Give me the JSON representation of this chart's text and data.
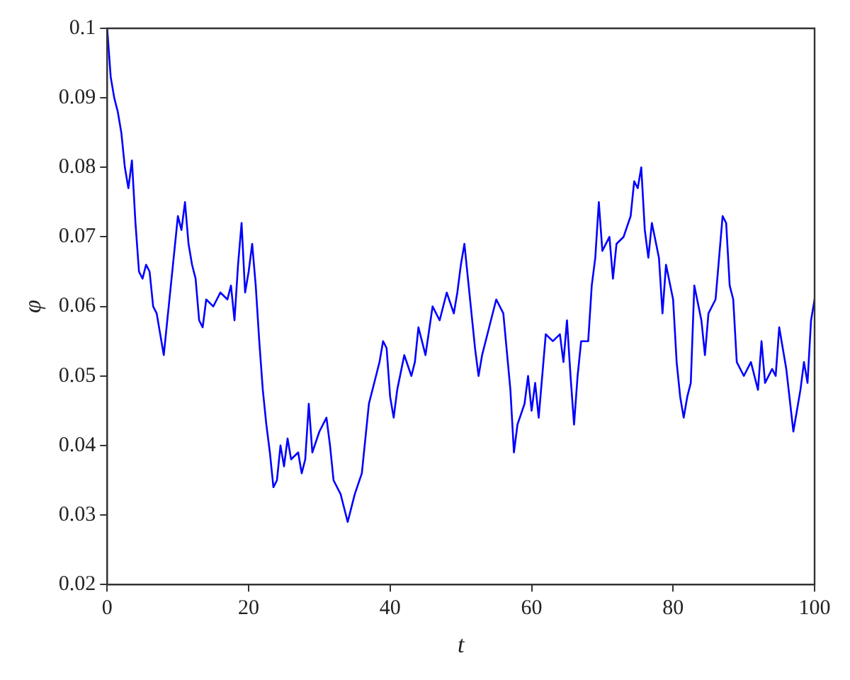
{
  "chart_data": {
    "type": "line",
    "xlabel": "t",
    "ylabel": "φ",
    "xlim": [
      0,
      100
    ],
    "xticks": [
      0,
      20,
      40,
      60,
      80,
      100
    ],
    "ylim": [
      0.02,
      0.1
    ],
    "yticks": [
      0.02,
      0.03,
      0.04,
      0.05,
      0.06,
      0.07,
      0.08,
      0.09,
      0.1
    ],
    "grid": false,
    "legend": false,
    "marker": "none",
    "line_style": "solid",
    "x": [
      0,
      0.5,
      1,
      1.5,
      2,
      2.5,
      3,
      3.5,
      4,
      4.5,
      5,
      5.5,
      6,
      6.5,
      7,
      7.5,
      8,
      8.5,
      9,
      9.5,
      10,
      10.5,
      11,
      11.5,
      12,
      12.5,
      13,
      13.5,
      14,
      15,
      16,
      17,
      17.5,
      18,
      18.5,
      19,
      19.5,
      20,
      20.5,
      21,
      21.5,
      22,
      22.5,
      23,
      23.5,
      24,
      24.5,
      25,
      25.5,
      26,
      27,
      27.5,
      28,
      28.5,
      29,
      30,
      31,
      31.5,
      32,
      33,
      33.5,
      34,
      35,
      36,
      37,
      37.5,
      38,
      38.5,
      39,
      39.5,
      40,
      40.5,
      41,
      42,
      43,
      43.5,
      44,
      45,
      46,
      47,
      48,
      49,
      49.5,
      50,
      50.5,
      51,
      52,
      52.5,
      53,
      54,
      55,
      56,
      57,
      57.5,
      58,
      59,
      59.5,
      60,
      60.5,
      61,
      62,
      63,
      64,
      64.5,
      65,
      65.5,
      66,
      66.5,
      67,
      68,
      68.5,
      69,
      69.5,
      70,
      71,
      71.5,
      72,
      73,
      74,
      74.5,
      75,
      75.5,
      76,
      76.5,
      77,
      78,
      78.5,
      79,
      80,
      80.5,
      81,
      81.5,
      82,
      82.5,
      83,
      84,
      84.5,
      85,
      86,
      86.5,
      87,
      87.5,
      88,
      88.5,
      89,
      90,
      91,
      92,
      92.5,
      93,
      94,
      94.5,
      95,
      96,
      97,
      97.5,
      98,
      98.5,
      99,
      99.5,
      100
    ],
    "series": [
      {
        "color": "#0000ff",
        "values": [
          0.1,
          0.093,
          0.09,
          0.088,
          0.085,
          0.08,
          0.077,
          0.081,
          0.072,
          0.065,
          0.064,
          0.066,
          0.065,
          0.06,
          0.059,
          0.056,
          0.053,
          0.058,
          0.063,
          0.068,
          0.073,
          0.071,
          0.075,
          0.069,
          0.066,
          0.064,
          0.058,
          0.057,
          0.061,
          0.06,
          0.062,
          0.061,
          0.063,
          0.058,
          0.066,
          0.072,
          0.062,
          0.065,
          0.069,
          0.063,
          0.055,
          0.048,
          0.043,
          0.039,
          0.034,
          0.035,
          0.04,
          0.037,
          0.041,
          0.038,
          0.039,
          0.036,
          0.038,
          0.046,
          0.039,
          0.042,
          0.044,
          0.04,
          0.035,
          0.033,
          0.031,
          0.029,
          0.033,
          0.036,
          0.046,
          0.048,
          0.05,
          0.052,
          0.055,
          0.054,
          0.047,
          0.044,
          0.048,
          0.053,
          0.05,
          0.052,
          0.057,
          0.053,
          0.06,
          0.058,
          0.062,
          0.059,
          0.062,
          0.066,
          0.069,
          0.064,
          0.054,
          0.05,
          0.053,
          0.057,
          0.061,
          0.059,
          0.048,
          0.039,
          0.043,
          0.046,
          0.05,
          0.045,
          0.049,
          0.044,
          0.056,
          0.055,
          0.056,
          0.052,
          0.058,
          0.05,
          0.043,
          0.05,
          0.055,
          0.055,
          0.063,
          0.067,
          0.075,
          0.068,
          0.07,
          0.064,
          0.069,
          0.07,
          0.073,
          0.078,
          0.077,
          0.08,
          0.071,
          0.067,
          0.072,
          0.067,
          0.059,
          0.066,
          0.061,
          0.052,
          0.047,
          0.044,
          0.047,
          0.049,
          0.063,
          0.058,
          0.053,
          0.059,
          0.061,
          0.067,
          0.073,
          0.072,
          0.063,
          0.061,
          0.052,
          0.05,
          0.052,
          0.048,
          0.055,
          0.049,
          0.051,
          0.05,
          0.057,
          0.051,
          0.042,
          0.045,
          0.048,
          0.052,
          0.049,
          0.058,
          0.061
        ]
      }
    ]
  }
}
